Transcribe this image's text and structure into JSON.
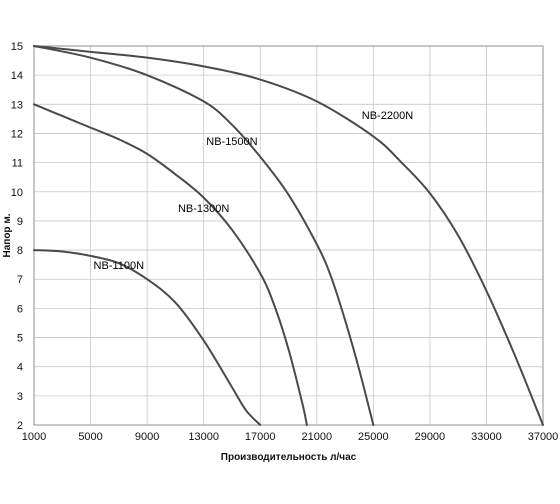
{
  "chart_data": {
    "type": "line",
    "title": "",
    "xlabel": "Производительность  л/час",
    "ylabel": "Напор м.",
    "xlim": [
      1000,
      37000
    ],
    "ylim": [
      2,
      15
    ],
    "x_ticks": [
      1000,
      5000,
      9000,
      13000,
      17000,
      21000,
      25000,
      29000,
      33000,
      37000
    ],
    "y_ticks": [
      2,
      3,
      4,
      5,
      6,
      7,
      8,
      9,
      10,
      11,
      12,
      13,
      14,
      15
    ],
    "grid": true,
    "legend": "none",
    "line_color": "#4a4a4a",
    "series": [
      {
        "name": "NB-1100N",
        "x": [
          1000,
          3000,
          5000,
          7000,
          9000,
          11000,
          13000,
          15000,
          16000,
          17000
        ],
        "y": [
          8.0,
          7.95,
          7.8,
          7.55,
          7.0,
          6.2,
          4.9,
          3.3,
          2.5,
          2.0
        ]
      },
      {
        "name": "NB-1300N",
        "x": [
          1000,
          3000,
          5000,
          7000,
          9000,
          11000,
          13000,
          15000,
          17000,
          18000,
          19000,
          20000,
          20300
        ],
        "y": [
          13.0,
          12.6,
          12.2,
          11.8,
          11.3,
          10.6,
          9.8,
          8.7,
          7.2,
          6.1,
          4.6,
          2.7,
          2.0
        ]
      },
      {
        "name": "NB-1500N",
        "x": [
          1000,
          5000,
          9000,
          13000,
          15000,
          17000,
          19000,
          21000,
          22000,
          23000,
          24000,
          25000
        ],
        "y": [
          15.0,
          14.6,
          14.0,
          13.1,
          12.3,
          11.2,
          9.9,
          8.2,
          7.1,
          5.6,
          3.9,
          2.0
        ]
      },
      {
        "name": "NB-2200N",
        "x": [
          1000,
          5000,
          9000,
          13000,
          17000,
          21000,
          25000,
          27000,
          29000,
          31000,
          33000,
          35000,
          37000
        ],
        "y": [
          15.0,
          14.8,
          14.6,
          14.3,
          13.85,
          13.1,
          11.9,
          11.0,
          9.95,
          8.5,
          6.6,
          4.4,
          2.0
        ]
      }
    ],
    "labels": [
      {
        "text": "NB-1100N",
        "x": 7000,
        "y": 7.35
      },
      {
        "text": "NB-1300N",
        "x": 13000,
        "y": 9.3
      },
      {
        "text": "NB-1500N",
        "x": 15000,
        "y": 11.6
      },
      {
        "text": "NB-2200N",
        "x": 26000,
        "y": 12.5
      }
    ]
  }
}
